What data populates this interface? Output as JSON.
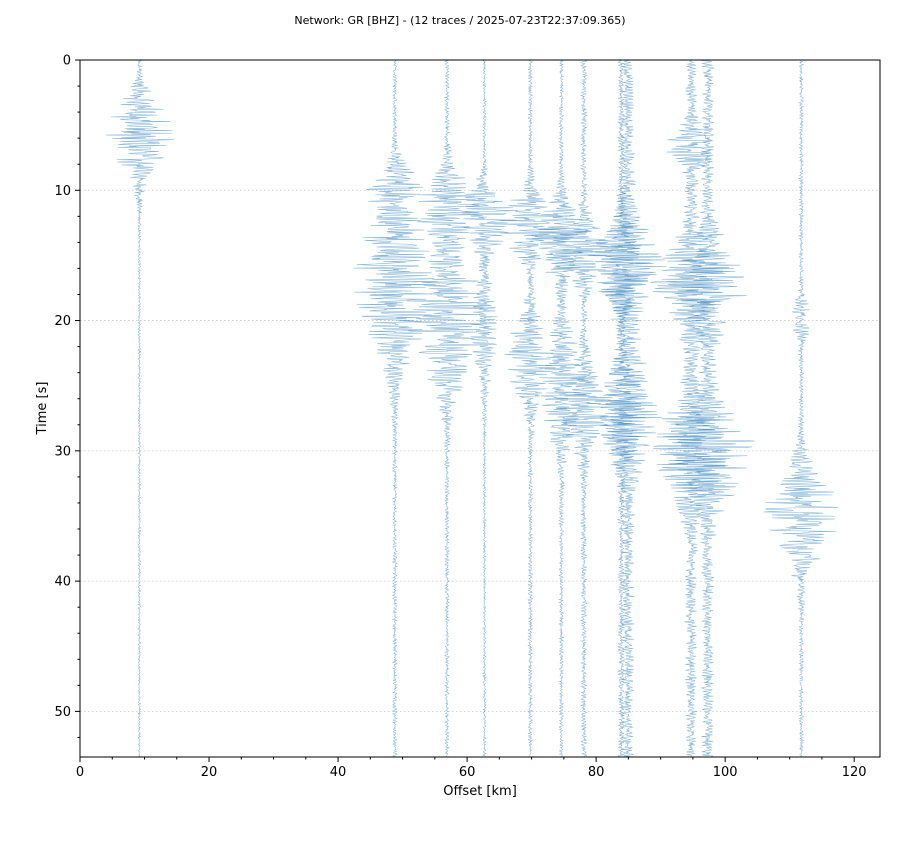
{
  "chart_data": {
    "type": "line",
    "title": "Network: GR [BHZ] - (12 traces / 2025-07-23T22:37:09.365)",
    "xlabel": "Offset [km]",
    "ylabel": "Time [s]",
    "xlim": [
      0,
      124
    ],
    "ylim": [
      53.5,
      0
    ],
    "y_inverted": true,
    "xticks": [
      0,
      20,
      40,
      60,
      80,
      100,
      120
    ],
    "xtick_labels": [
      "0",
      "20",
      "40",
      "60",
      "80",
      "100",
      "120"
    ],
    "yticks": [
      0,
      10,
      20,
      30,
      40,
      50
    ],
    "ytick_labels": [
      "0",
      "10",
      "20",
      "30",
      "40",
      "50"
    ],
    "grid": "horizontal",
    "color": "#1f77b4",
    "series": [
      {
        "offset": 9.2,
        "noise": 0.18,
        "events": [
          {
            "t": 5.8,
            "amp": 4.5,
            "dur": 2.2
          }
        ]
      },
      {
        "offset": 48.8,
        "noise": 0.3,
        "events": [
          {
            "t": 10.0,
            "amp": 3.2,
            "dur": 1.4
          },
          {
            "t": 15.5,
            "amp": 4.2,
            "dur": 3.2
          },
          {
            "t": 20.0,
            "amp": 2.8,
            "dur": 3.0
          }
        ]
      },
      {
        "offset": 56.9,
        "noise": 0.3,
        "events": [
          {
            "t": 11.2,
            "amp": 4.5,
            "dur": 1.8
          },
          {
            "t": 18.5,
            "amp": 3.6,
            "dur": 2.8
          },
          {
            "t": 22.0,
            "amp": 2.8,
            "dur": 3.0
          }
        ]
      },
      {
        "offset": 62.7,
        "noise": 0.2,
        "events": [
          {
            "t": 12.0,
            "amp": 4.5,
            "dur": 1.6
          },
          {
            "t": 20.5,
            "amp": 1.8,
            "dur": 3.0
          }
        ]
      },
      {
        "offset": 69.8,
        "noise": 0.3,
        "events": [
          {
            "t": 12.6,
            "amp": 5.2,
            "dur": 1.6
          },
          {
            "t": 23.0,
            "amp": 3.4,
            "dur": 2.4
          }
        ]
      },
      {
        "offset": 74.6,
        "noise": 0.3,
        "events": [
          {
            "t": 13.8,
            "amp": 4.0,
            "dur": 2.0
          },
          {
            "t": 25.0,
            "amp": 3.4,
            "dur": 3.0
          }
        ]
      },
      {
        "offset": 78.1,
        "noise": 0.4,
        "events": [
          {
            "t": 14.5,
            "amp": 4.4,
            "dur": 1.6
          },
          {
            "t": 26.6,
            "amp": 3.8,
            "dur": 2.2
          }
        ]
      },
      {
        "offset": 83.9,
        "noise": 0.45,
        "events": [
          {
            "t": 15.6,
            "amp": 3.8,
            "dur": 2.2
          },
          {
            "t": 27.2,
            "amp": 3.8,
            "dur": 2.2
          }
        ]
      },
      {
        "offset": 84.9,
        "noise": 0.9,
        "events": [
          {
            "t": 15.8,
            "amp": 4.8,
            "dur": 2.4
          },
          {
            "t": 27.0,
            "amp": 3.6,
            "dur": 3.0
          }
        ]
      },
      {
        "offset": 94.7,
        "noise": 0.8,
        "events": [
          {
            "t": 6.8,
            "amp": 2.8,
            "dur": 1.2
          },
          {
            "t": 17.2,
            "amp": 5.5,
            "dur": 2.2
          },
          {
            "t": 30.0,
            "amp": 4.8,
            "dur": 2.6
          }
        ]
      },
      {
        "offset": 97.3,
        "noise": 0.85,
        "events": [
          {
            "t": 17.3,
            "amp": 4.8,
            "dur": 2.4
          },
          {
            "t": 30.2,
            "amp": 5.6,
            "dur": 2.6
          }
        ]
      },
      {
        "offset": 111.8,
        "noise": 0.3,
        "events": [
          {
            "t": 20.0,
            "amp": 1.2,
            "dur": 1.2
          },
          {
            "t": 35.0,
            "amp": 5.2,
            "dur": 2.6
          }
        ]
      }
    ]
  }
}
